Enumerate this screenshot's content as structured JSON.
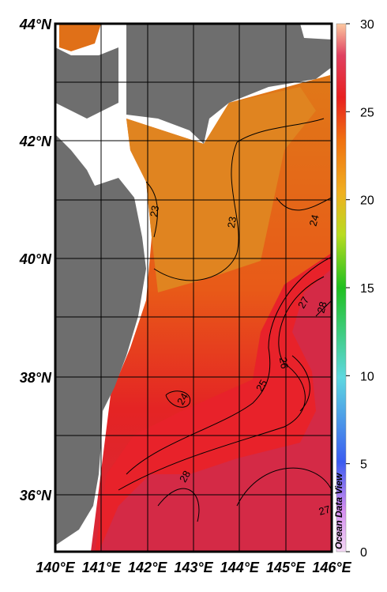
{
  "map": {
    "lat_labels": [
      "44°N",
      "42°N",
      "40°N",
      "38°N",
      "36°N"
    ],
    "lon_labels": [
      "140°E",
      "141°E",
      "142°E",
      "143°E",
      "144°E",
      "145°E",
      "146°E"
    ],
    "contour_labels": [
      "23",
      "23",
      "24",
      "27",
      "28",
      "26",
      "25",
      "24",
      "28",
      "27"
    ],
    "colorbar": {
      "range": [
        0,
        30
      ],
      "ticks": [
        0,
        5,
        10,
        15,
        20,
        25,
        30
      ]
    },
    "watermark": "Ocean Data View"
  }
}
